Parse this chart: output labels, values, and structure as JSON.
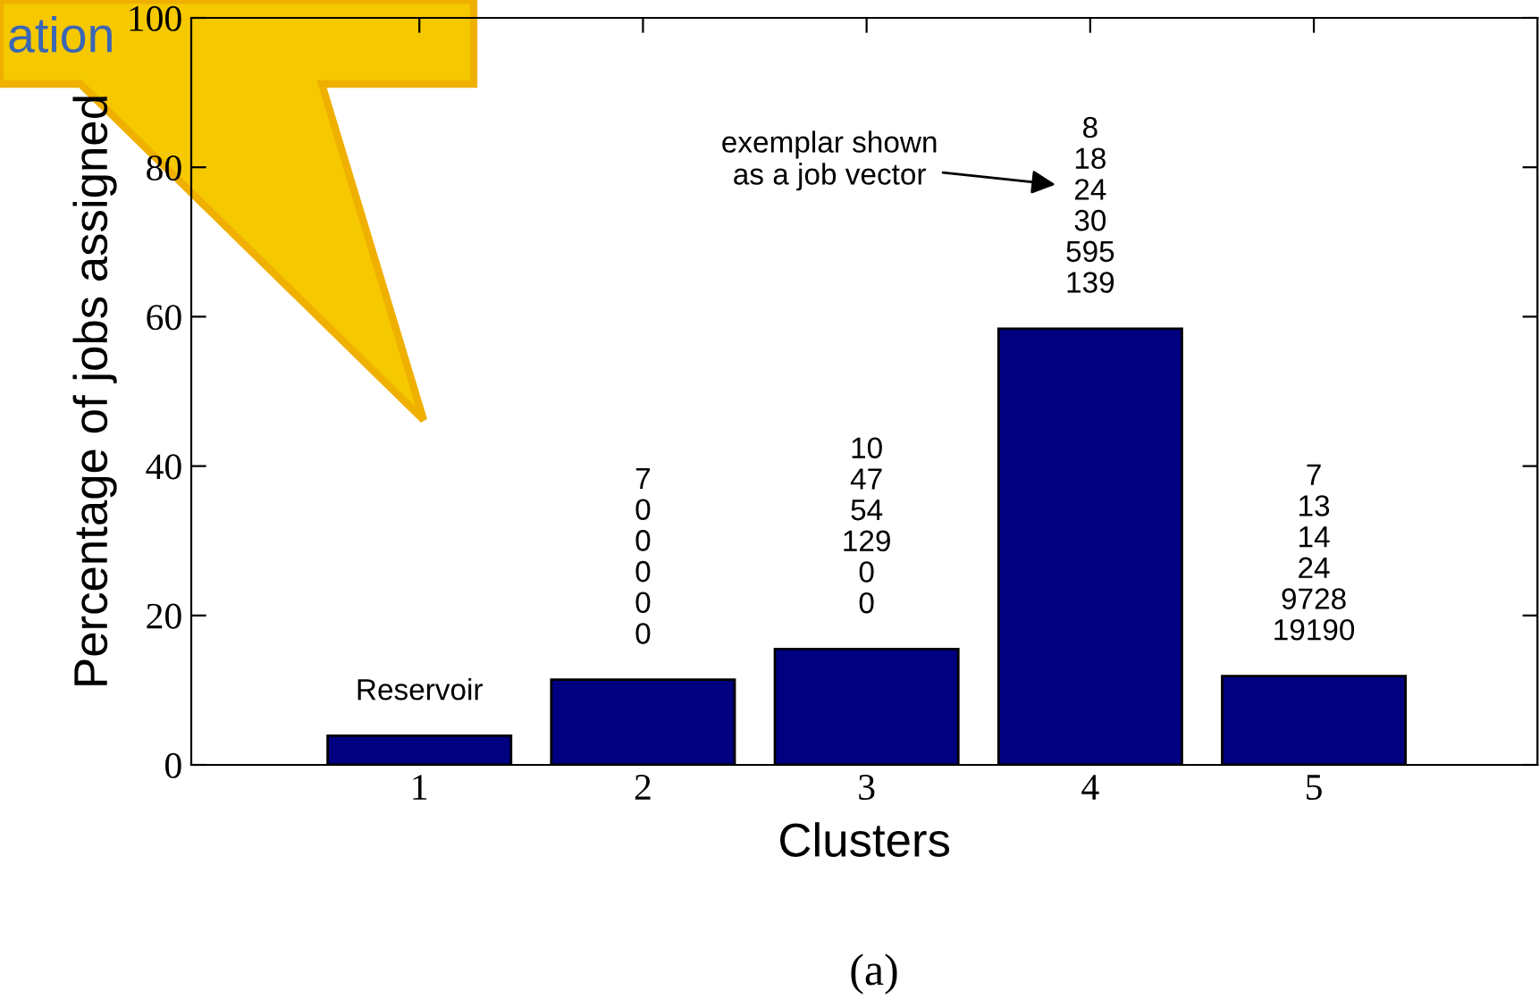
{
  "chart_data": {
    "type": "bar",
    "xlabel": "Clusters",
    "ylabel": "Percentage of jobs assigned",
    "categories": [
      "1",
      "2",
      "3",
      "4",
      "5"
    ],
    "values": [
      3.9,
      11.4,
      15.5,
      58.4,
      11.9
    ],
    "color": "#000080",
    "ylim": [
      0,
      100
    ],
    "yticks": [
      0,
      20,
      40,
      60,
      80,
      100
    ],
    "grid": false,
    "legend": false,
    "annotations": [
      "Reservoir",
      "7\n0\n0\n0\n0\n0",
      "10\n47\n54\n129\n0\n0",
      "8\n18\n24\n30\n595\n139",
      "7\n13\n14\n24\n9728\n19190",
      "exemplar shown\nas a job vector",
      "(a)",
      "ation"
    ]
  }
}
